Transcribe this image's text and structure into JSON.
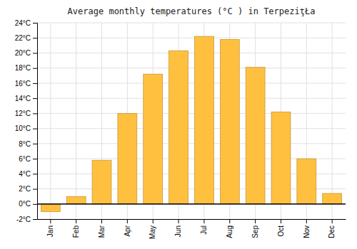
{
  "chart_data": {
    "type": "bar",
    "title": "Average monthly temperatures (°C ) in TerpeziţŁa",
    "categories": [
      "Jan",
      "Feb",
      "Mar",
      "Apr",
      "May",
      "Jun",
      "Jul",
      "Aug",
      "Sep",
      "Oct",
      "Nov",
      "Dec"
    ],
    "values": [
      -1.0,
      1.0,
      5.8,
      12.0,
      17.2,
      20.3,
      22.2,
      21.8,
      18.1,
      12.2,
      6.0,
      1.4
    ],
    "color": "#FFC040",
    "ylim": [
      -2,
      24
    ],
    "yticks": [
      {
        "value": -2,
        "label": "-2°C"
      },
      {
        "value": 0,
        "label": "0°C"
      },
      {
        "value": 2,
        "label": "2°C"
      },
      {
        "value": 4,
        "label": "4°C"
      },
      {
        "value": 6,
        "label": "6°C"
      },
      {
        "value": 8,
        "label": "8°C"
      },
      {
        "value": 10,
        "label": "10°C"
      },
      {
        "value": 12,
        "label": "12°C"
      },
      {
        "value": 14,
        "label": "14°C"
      },
      {
        "value": 16,
        "label": "16°C"
      },
      {
        "value": 18,
        "label": "18°C"
      },
      {
        "value": 20,
        "label": "20°C"
      },
      {
        "value": 22,
        "label": "22°C"
      },
      {
        "value": 24,
        "label": "24°C"
      }
    ],
    "grid": true
  }
}
